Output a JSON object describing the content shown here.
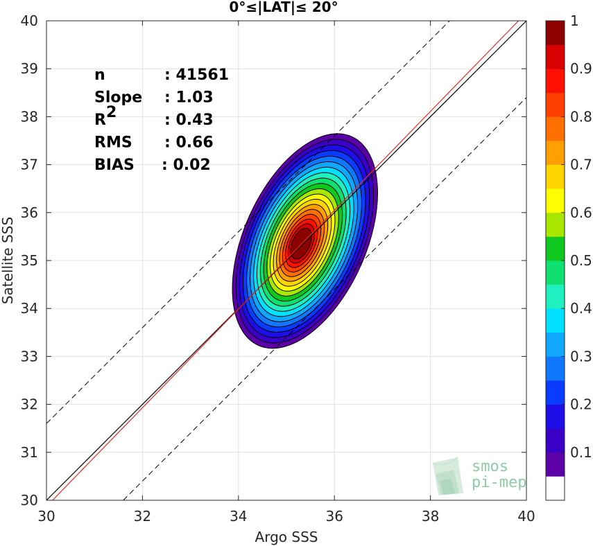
{
  "chart_data": {
    "type": "contour-scatter",
    "title": "0°≤|LAT|≤ 20°",
    "xlabel": "Argo SSS",
    "ylabel": "Satellite SSS",
    "xlim": [
      30,
      40
    ],
    "ylim": [
      30,
      40
    ],
    "x_ticks": [
      "30",
      "32",
      "34",
      "36",
      "38",
      "40"
    ],
    "y_ticks": [
      "30",
      "31",
      "32",
      "33",
      "34",
      "35",
      "36",
      "37",
      "38",
      "39",
      "40"
    ],
    "grid": true,
    "stats": [
      {
        "label": "n",
        "value": ": 41561"
      },
      {
        "label": "Slope",
        "value": ": 1.03"
      },
      {
        "label": "R",
        "sup": "2",
        "value": ": 0.43"
      },
      {
        "label": "RMS",
        "value": ": 0.66"
      },
      {
        "label": "BIAS",
        "value": ": 0.02"
      }
    ],
    "lines": {
      "identity": {
        "slope": 1,
        "intercept": 0,
        "color": "#000000"
      },
      "fit": {
        "slope": 1.03,
        "intercept": -1.03,
        "color": "#e8281e"
      },
      "upper_dashed": {
        "slope": 1,
        "intercept": 1.6
      },
      "lower_dashed": {
        "slope": 1,
        "intercept": -1.6
      }
    },
    "density_center": {
      "x": 35.3,
      "y": 35.35
    },
    "density_levels": [
      0.05,
      0.1,
      0.15,
      0.2,
      0.25,
      0.3,
      0.35,
      0.4,
      0.45,
      0.5,
      0.55,
      0.6,
      0.65,
      0.7,
      0.75,
      0.8,
      0.85,
      0.9,
      0.95
    ],
    "colorbar": {
      "ticks": [
        "0.1",
        "0.2",
        "0.3",
        "0.4",
        "0.5",
        "0.6",
        "0.7",
        "0.8",
        "0.9",
        "1"
      ],
      "colors": [
        "#ffffff",
        "#5c00a8",
        "#3a00c8",
        "#1e0ee8",
        "#0a3cff",
        "#1078ff",
        "#10a8ff",
        "#00e0ff",
        "#20f0c0",
        "#10e070",
        "#10c820",
        "#a8e800",
        "#ffff00",
        "#ffd400",
        "#ffa000",
        "#ff7000",
        "#ff4000",
        "#ff1000",
        "#d80000",
        "#8c0000"
      ]
    }
  },
  "logo": {
    "line1": "smos",
    "line2": "pi-mep"
  }
}
